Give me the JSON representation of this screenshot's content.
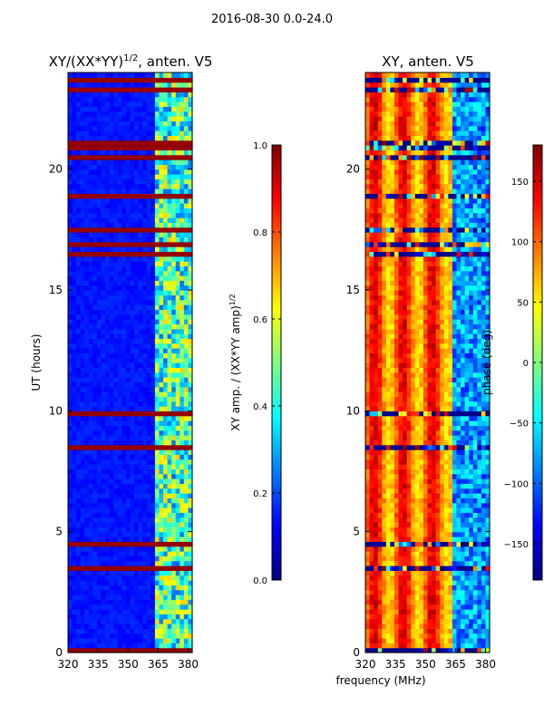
{
  "figure": {
    "suptitle": "2016-08-30 0.0-24.0",
    "common_xlabel": "frequency (MHz)"
  },
  "chart_data": [
    {
      "type": "heatmap",
      "title_main": "XY/(XX*YY)",
      "title_sup": "1/2",
      "title_tail": ", anten. V5",
      "xlabel": "",
      "ylabel": "UT (hours)",
      "xlim": [
        320,
        382
      ],
      "ylim": [
        0,
        24
      ],
      "xticks": [
        320,
        335,
        350,
        365,
        380
      ],
      "yticks": [
        0,
        5,
        10,
        15,
        20
      ],
      "colormap": "jet",
      "colorbar": {
        "label_main": "XY amp. / (XX*YY amp)",
        "label_sup": "1/2",
        "range": [
          0.0,
          1.0
        ],
        "ticks": [
          "0.0",
          "0.2",
          "0.4",
          "0.6",
          "0.8",
          "1.0"
        ]
      },
      "description_values": {
        "background_level": 0.12,
        "high_band_level": 0.45,
        "rfi_line_level": 0.98,
        "hot_band_start_mhz": 362
      }
    },
    {
      "type": "heatmap",
      "title": "XY, anten. V5",
      "xlabel": "",
      "ylabel": "",
      "xlim": [
        320,
        382
      ],
      "ylim": [
        0,
        24
      ],
      "xticks": [
        320,
        335,
        350,
        365,
        380
      ],
      "yticks": [
        0,
        5,
        10,
        15,
        20
      ],
      "colormap": "jet",
      "colorbar": {
        "label": "phase (deg)",
        "range": [
          -180,
          180
        ],
        "ticks": [
          "−150",
          "−100",
          "−50",
          "0",
          "50",
          "100",
          "150"
        ]
      },
      "description_values": {
        "background_phase_deg": 100,
        "high_band_phase_deg": -80
      }
    }
  ],
  "colors": {
    "jet": [
      "#00007f",
      "#0000ff",
      "#007fff",
      "#00ffff",
      "#7fff7f",
      "#ffff00",
      "#ff7f00",
      "#ff0000",
      "#7f0000"
    ]
  }
}
